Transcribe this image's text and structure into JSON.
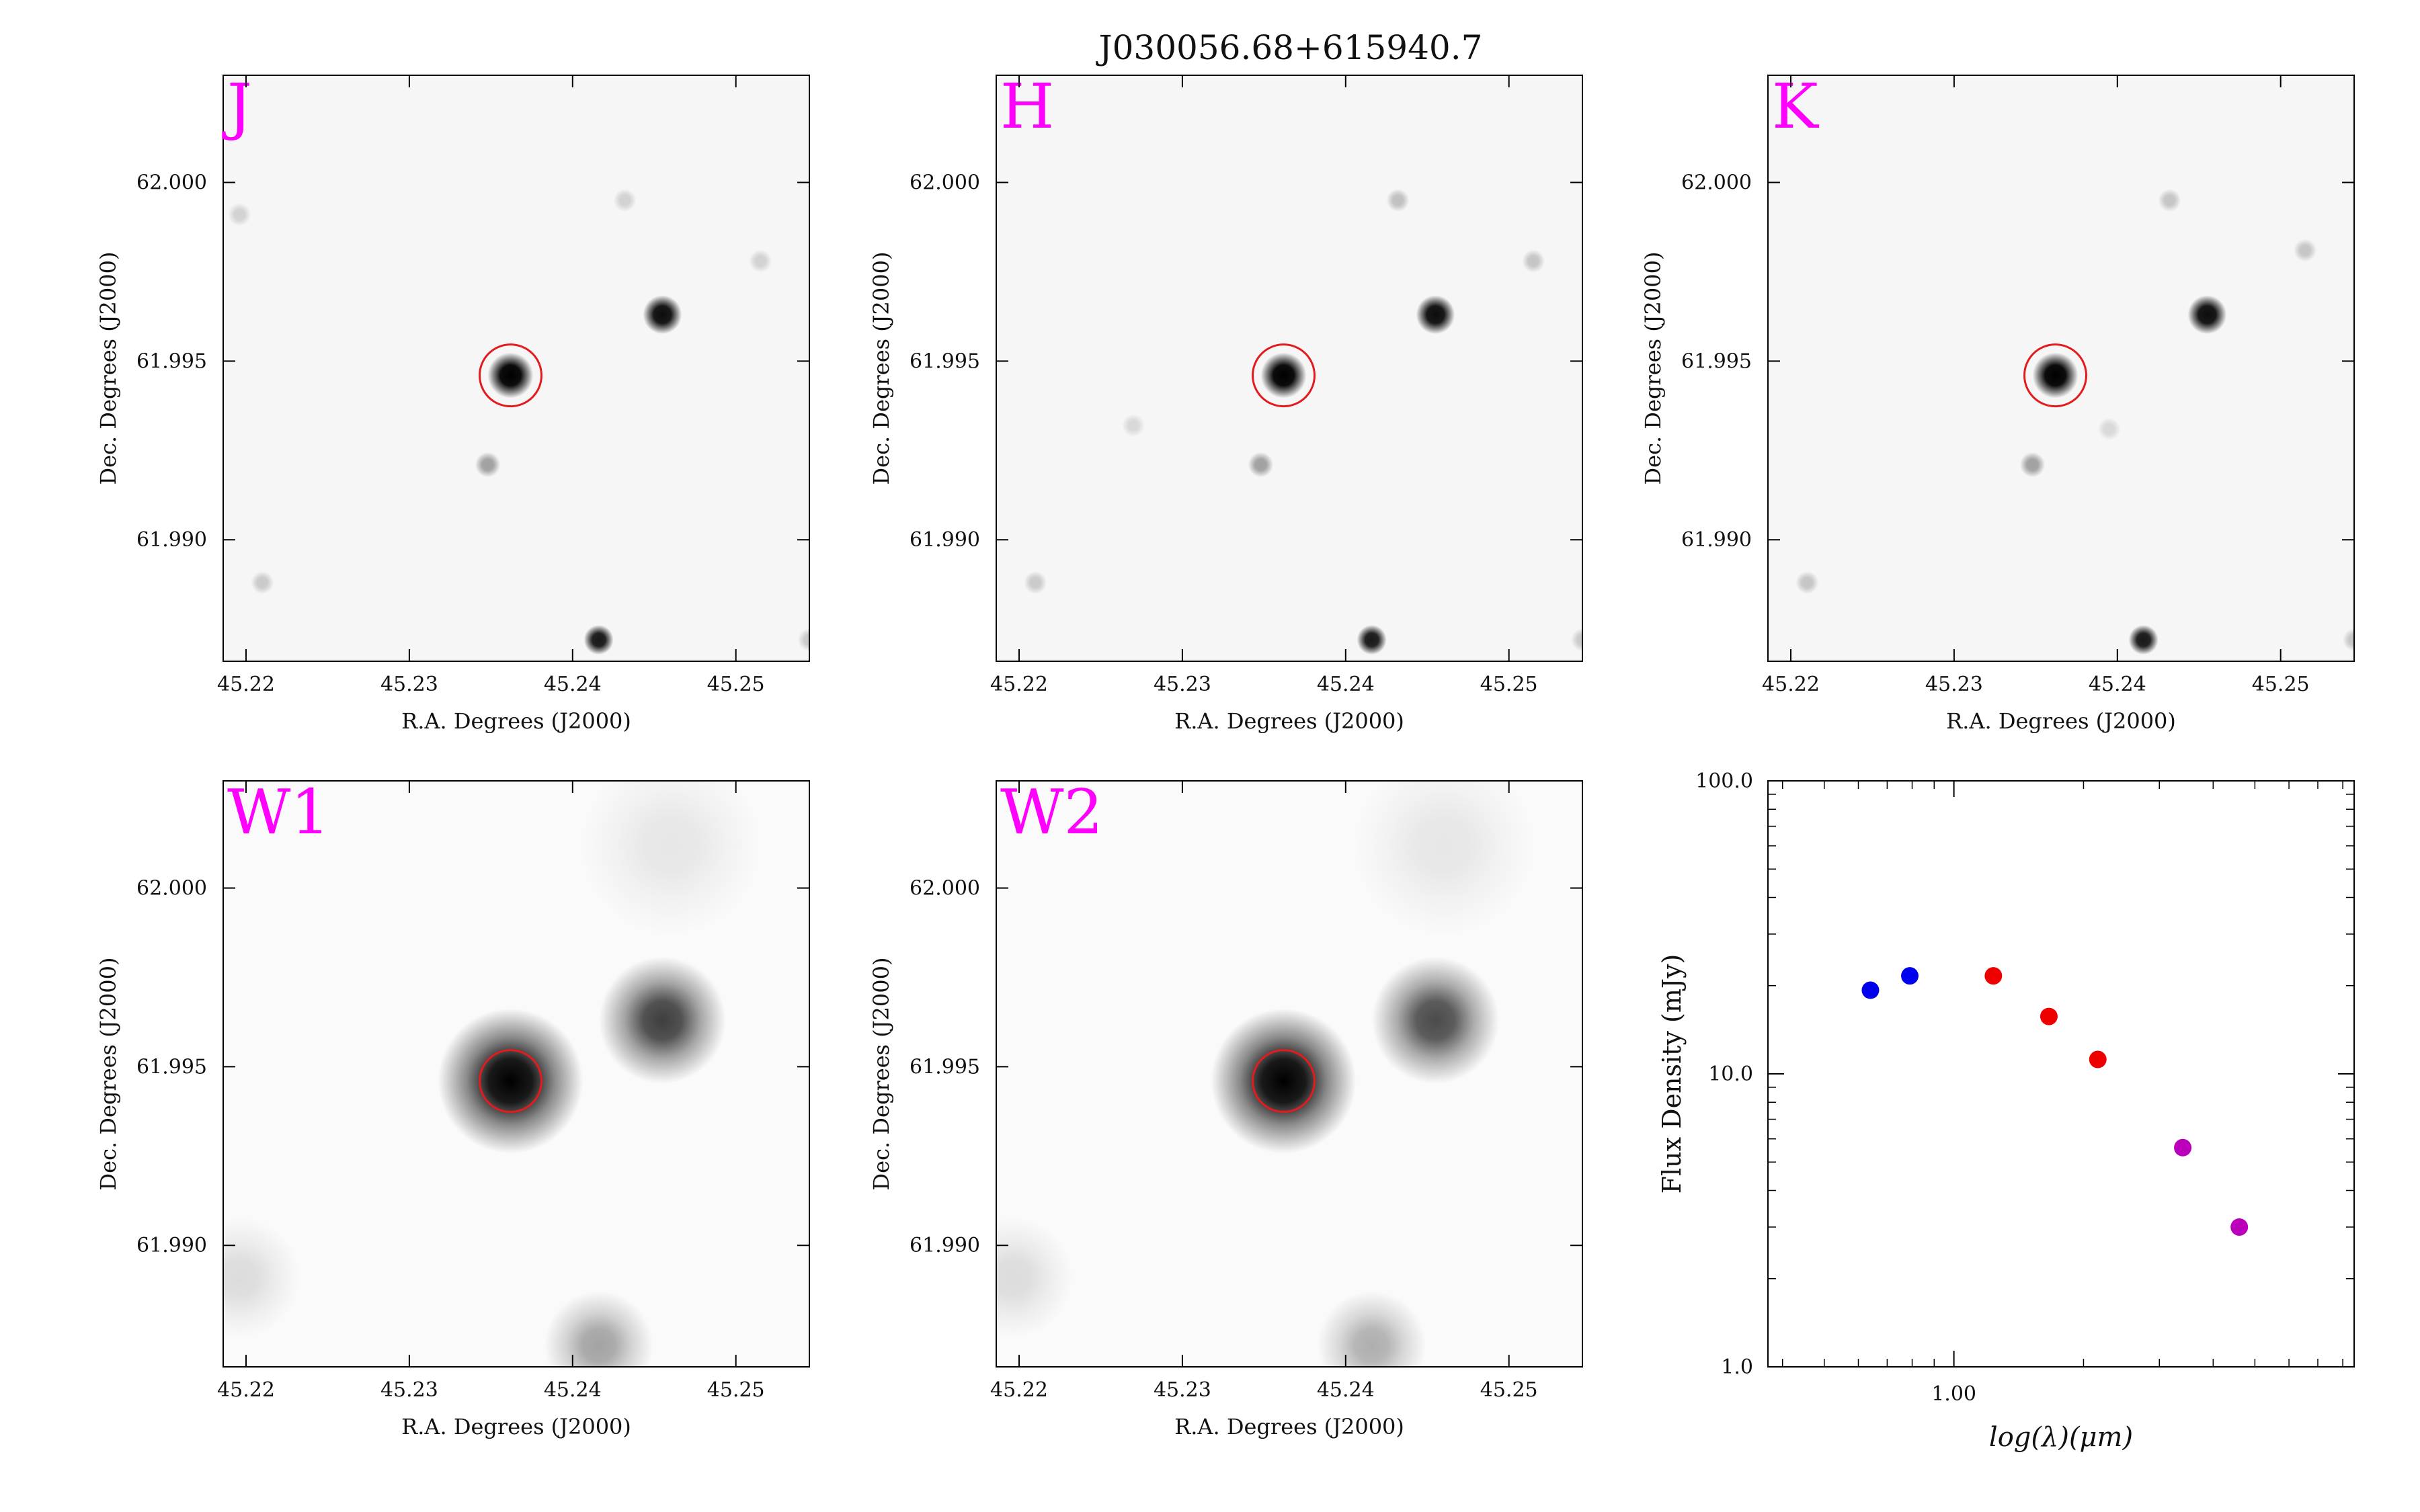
{
  "title": "J030056.68+615940.7",
  "target_marker_color": "#e41a1c",
  "band_label_color": "#ff00ff",
  "image_panels": [
    {
      "band": "J",
      "xlabel": "R.A. Degrees (J2000)",
      "ylabel": "Dec. Degrees (J2000)",
      "xlim": [
        45.2186,
        45.2545
      ],
      "ylim": [
        61.9866,
        62.003
      ],
      "xticks": [
        45.22,
        45.23,
        45.24,
        45.25
      ],
      "xtick_labels": [
        "45.22",
        "45.23",
        "45.24",
        "45.25"
      ],
      "yticks": [
        61.99,
        61.995,
        62.0
      ],
      "ytick_labels": [
        "61.990",
        "61.995",
        "62.000"
      ],
      "sources": [
        {
          "ra": 45.2362,
          "dec": 61.9946,
          "brightness": 1.0,
          "size": 1.0,
          "target": true
        },
        {
          "ra": 45.2455,
          "dec": 61.9963,
          "brightness": 0.95,
          "size": 0.85
        },
        {
          "ra": 45.2416,
          "dec": 61.9872,
          "brightness": 0.9,
          "size": 0.65
        },
        {
          "ra": 45.2348,
          "dec": 61.9921,
          "brightness": 0.35,
          "size": 0.55
        },
        {
          "ra": 45.2432,
          "dec": 61.9995,
          "brightness": 0.15,
          "size": 0.5
        },
        {
          "ra": 45.2515,
          "dec": 61.9978,
          "brightness": 0.15,
          "size": 0.5
        },
        {
          "ra": 45.2196,
          "dec": 61.9991,
          "brightness": 0.15,
          "size": 0.5
        },
        {
          "ra": 45.221,
          "dec": 61.9888,
          "brightness": 0.18,
          "size": 0.5
        },
        {
          "ra": 45.2545,
          "dec": 61.9872,
          "brightness": 0.18,
          "size": 0.5
        }
      ]
    },
    {
      "band": "H",
      "xlabel": "R.A. Degrees (J2000)",
      "ylabel": "Dec. Degrees (J2000)",
      "xlim": [
        45.2186,
        45.2545
      ],
      "ylim": [
        61.9866,
        62.003
      ],
      "xticks": [
        45.22,
        45.23,
        45.24,
        45.25
      ],
      "xtick_labels": [
        "45.22",
        "45.23",
        "45.24",
        "45.25"
      ],
      "yticks": [
        61.99,
        61.995,
        62.0
      ],
      "ytick_labels": [
        "61.990",
        "61.995",
        "62.000"
      ],
      "sources": [
        {
          "ra": 45.2362,
          "dec": 61.9946,
          "brightness": 1.0,
          "size": 1.0,
          "target": true
        },
        {
          "ra": 45.2455,
          "dec": 61.9963,
          "brightness": 0.95,
          "size": 0.85
        },
        {
          "ra": 45.2416,
          "dec": 61.9872,
          "brightness": 0.9,
          "size": 0.65
        },
        {
          "ra": 45.2348,
          "dec": 61.9921,
          "brightness": 0.35,
          "size": 0.55
        },
        {
          "ra": 45.2432,
          "dec": 61.9995,
          "brightness": 0.22,
          "size": 0.5
        },
        {
          "ra": 45.2515,
          "dec": 61.9978,
          "brightness": 0.2,
          "size": 0.5
        },
        {
          "ra": 45.227,
          "dec": 61.9932,
          "brightness": 0.12,
          "size": 0.5
        },
        {
          "ra": 45.221,
          "dec": 61.9888,
          "brightness": 0.18,
          "size": 0.5
        },
        {
          "ra": 45.2545,
          "dec": 61.9872,
          "brightness": 0.18,
          "size": 0.5
        }
      ]
    },
    {
      "band": "K",
      "xlabel": "R.A. Degrees (J2000)",
      "ylabel": "Dec. Degrees (J2000)",
      "xlim": [
        45.2186,
        45.2545
      ],
      "ylim": [
        61.9866,
        62.003
      ],
      "xticks": [
        45.22,
        45.23,
        45.24,
        45.25
      ],
      "xtick_labels": [
        "45.22",
        "45.23",
        "45.24",
        "45.25"
      ],
      "yticks": [
        61.99,
        61.995,
        62.0
      ],
      "ytick_labels": [
        "61.990",
        "61.995",
        "62.000"
      ],
      "sources": [
        {
          "ra": 45.2362,
          "dec": 61.9946,
          "brightness": 1.0,
          "size": 1.0,
          "target": true
        },
        {
          "ra": 45.2455,
          "dec": 61.9963,
          "brightness": 0.95,
          "size": 0.85
        },
        {
          "ra": 45.2416,
          "dec": 61.9872,
          "brightness": 0.9,
          "size": 0.65
        },
        {
          "ra": 45.2348,
          "dec": 61.9921,
          "brightness": 0.35,
          "size": 0.55
        },
        {
          "ra": 45.2432,
          "dec": 61.9995,
          "brightness": 0.2,
          "size": 0.5
        },
        {
          "ra": 45.2515,
          "dec": 61.9981,
          "brightness": 0.2,
          "size": 0.5
        },
        {
          "ra": 45.221,
          "dec": 61.9888,
          "brightness": 0.2,
          "size": 0.5
        },
        {
          "ra": 45.2395,
          "dec": 61.9931,
          "brightness": 0.12,
          "size": 0.5
        },
        {
          "ra": 45.2545,
          "dec": 61.9872,
          "brightness": 0.2,
          "size": 0.5
        }
      ]
    },
    {
      "band": "W1",
      "xlabel": "R.A. Degrees (J2000)",
      "ylabel": "Dec. Degrees (J2000)",
      "xlim": [
        45.2186,
        45.2545
      ],
      "ylim": [
        61.9866,
        62.003
      ],
      "xticks": [
        45.22,
        45.23,
        45.24,
        45.25
      ],
      "xtick_labels": [
        "45.22",
        "45.23",
        "45.24",
        "45.25"
      ],
      "yticks": [
        61.99,
        61.995,
        62.0
      ],
      "ytick_labels": [
        "61.990",
        "61.995",
        "62.000"
      ],
      "sources": [
        {
          "ra": 45.2362,
          "dec": 61.9946,
          "brightness": 1.0,
          "size": 2.4,
          "target": true
        },
        {
          "ra": 45.2455,
          "dec": 61.9963,
          "brightness": 0.75,
          "size": 2.1
        },
        {
          "ra": 45.2416,
          "dec": 61.9872,
          "brightness": 0.35,
          "size": 1.8
        },
        {
          "ra": 45.2196,
          "dec": 61.9891,
          "brightness": 0.12,
          "size": 2.0
        },
        {
          "ra": 45.246,
          "dec": 62.0012,
          "brightness": 0.08,
          "size": 3.0
        }
      ]
    },
    {
      "band": "W2",
      "xlabel": "R.A. Degrees (J2000)",
      "ylabel": "Dec. Degrees (J2000)",
      "xlim": [
        45.2186,
        45.2545
      ],
      "ylim": [
        61.9866,
        62.003
      ],
      "xticks": [
        45.22,
        45.23,
        45.24,
        45.25
      ],
      "xtick_labels": [
        "45.22",
        "45.23",
        "45.24",
        "45.25"
      ],
      "yticks": [
        61.99,
        61.995,
        62.0
      ],
      "ytick_labels": [
        "61.990",
        "61.995",
        "62.000"
      ],
      "sources": [
        {
          "ra": 45.2362,
          "dec": 61.9946,
          "brightness": 1.0,
          "size": 2.4,
          "target": true
        },
        {
          "ra": 45.2455,
          "dec": 61.9963,
          "brightness": 0.7,
          "size": 2.1
        },
        {
          "ra": 45.2416,
          "dec": 61.9872,
          "brightness": 0.3,
          "size": 1.8
        },
        {
          "ra": 45.2196,
          "dec": 61.9891,
          "brightness": 0.12,
          "size": 2.0
        },
        {
          "ra": 45.246,
          "dec": 62.0012,
          "brightness": 0.08,
          "size": 3.0
        }
      ]
    }
  ],
  "chart_data": {
    "type": "scatter",
    "xscale": "log",
    "yscale": "log",
    "xlabel": "log(λ)(μm)",
    "ylabel": "Flux Density (mJy)",
    "xlim": [
      0.37,
      8.5
    ],
    "ylim": [
      1.0,
      100.0
    ],
    "xtick_labels": [
      "1.00"
    ],
    "ytick_labels": [
      "1.0",
      "10.0",
      "100.0"
    ],
    "series": [
      {
        "color": "#0000ee",
        "x": [
          0.64,
          0.79
        ],
        "y": [
          19.3,
          21.6
        ]
      },
      {
        "color": "#ee0000",
        "x": [
          1.235,
          1.662,
          2.159
        ],
        "y": [
          21.6,
          15.7,
          11.2
        ]
      },
      {
        "color": "#bb00bb",
        "x": [
          3.4,
          4.6
        ],
        "y": [
          5.6,
          3.0
        ]
      }
    ]
  }
}
